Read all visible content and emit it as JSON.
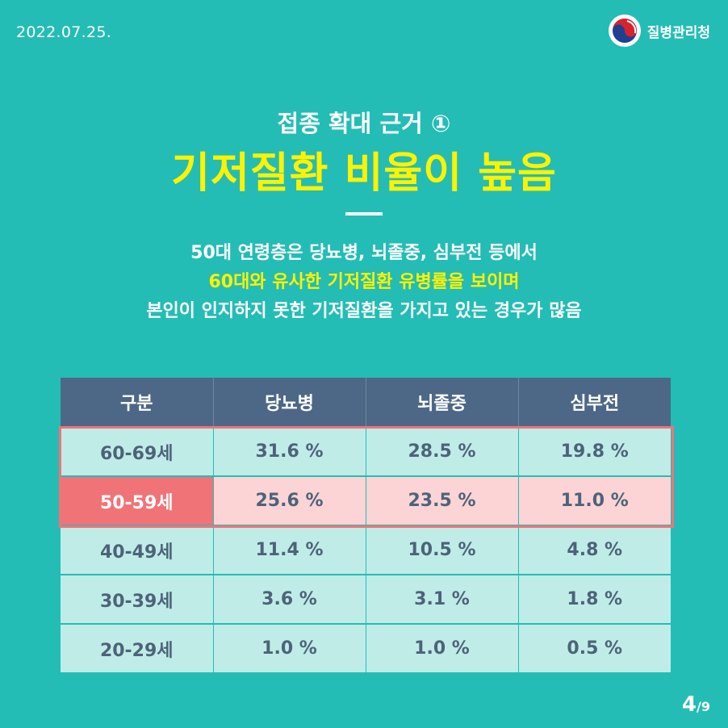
{
  "header": {
    "date": "2022.07.25.",
    "logo_text": "질병관리청"
  },
  "hero": {
    "subtitle": "접종 확대 근거 ①",
    "title": "기저질환 비율이 높음"
  },
  "description": {
    "line1": "50대 연령층은 당뇨병, 뇌졸중, 심부전 등에서",
    "line2": "60대와 유사한 기저질환 유병률을 보이며",
    "line3": "본인이 인지하지 못한 기저질환을 가지고 있는 경우가 많음"
  },
  "table": {
    "headers": [
      "구분",
      "당뇨병",
      "뇌졸중",
      "심부전"
    ],
    "rows": [
      {
        "label": "60-69세",
        "values": [
          "31.6 %",
          "28.5 %",
          "19.8 %"
        ]
      },
      {
        "label": "50-59세",
        "values": [
          "25.6 %",
          "23.5 %",
          "11.0 %"
        ]
      },
      {
        "label": "40-49세",
        "values": [
          "11.4 %",
          "10.5 %",
          "4.8 %"
        ]
      },
      {
        "label": "30-39세",
        "values": [
          "3.6 %",
          "3.1 %",
          "1.8 %"
        ]
      },
      {
        "label": "20-29세",
        "values": [
          "1.0 %",
          "1.0 %",
          "0.5 %"
        ]
      }
    ]
  },
  "pagination": {
    "current": "4",
    "separator": "/",
    "total": "9"
  },
  "colors": {
    "background": "#23bdb5",
    "title_yellow": "#fff200",
    "header_navy": "#4d6886",
    "row_mint": "#c0ece8",
    "row_pink": "#fcd4d6",
    "accent_red": "#f07378"
  }
}
